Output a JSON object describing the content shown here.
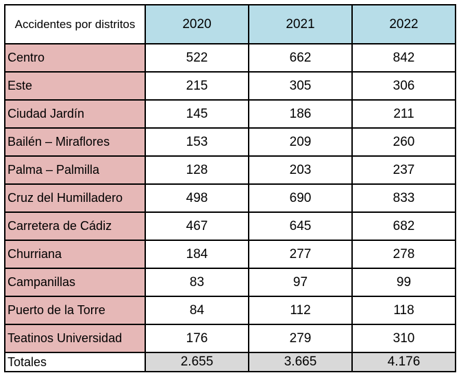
{
  "header": {
    "corner_label": "Accidentes por distritos",
    "years": [
      "2020",
      "2021",
      "2022"
    ]
  },
  "rows": [
    {
      "district": "Centro",
      "values": [
        "522",
        "662",
        "842"
      ]
    },
    {
      "district": "Este",
      "values": [
        "215",
        "305",
        "306"
      ]
    },
    {
      "district": "Ciudad Jardín",
      "values": [
        "145",
        "186",
        "211"
      ]
    },
    {
      "district": "Bailén – Miraflores",
      "values": [
        "153",
        "209",
        "260"
      ]
    },
    {
      "district": "Palma – Palmilla",
      "values": [
        "128",
        "203",
        "237"
      ]
    },
    {
      "district": "Cruz del Humilladero",
      "values": [
        "498",
        "690",
        "833"
      ]
    },
    {
      "district": "Carretera de Cádiz",
      "values": [
        "467",
        "645",
        "682"
      ]
    },
    {
      "district": "Churriana",
      "values": [
        "184",
        "277",
        "278"
      ]
    },
    {
      "district": "Campanillas",
      "values": [
        "83",
        "97",
        "99"
      ]
    },
    {
      "district": "Puerto de la Torre",
      "values": [
        "84",
        "112",
        "118"
      ]
    },
    {
      "district": "Teatinos Universidad",
      "values": [
        "176",
        "279",
        "310"
      ]
    }
  ],
  "totals": {
    "label": "Totales",
    "values": [
      "2.655",
      "3.665",
      "4.176"
    ]
  },
  "colors": {
    "header_fill": "#b7dde8",
    "district_fill": "#e6b8b7",
    "totals_fill": "#d9d9d9"
  }
}
